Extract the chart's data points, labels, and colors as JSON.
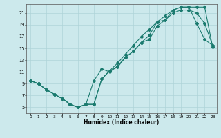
{
  "xlabel": "Humidex (Indice chaleur)",
  "background_color": "#cce9ec",
  "grid_color": "#afd4d8",
  "line_color": "#1a7a6e",
  "xlim": [
    -0.5,
    23.5
  ],
  "ylim": [
    4,
    22.5
  ],
  "xticks": [
    0,
    1,
    2,
    3,
    4,
    5,
    6,
    7,
    8,
    9,
    10,
    11,
    12,
    13,
    14,
    15,
    16,
    17,
    18,
    19,
    20,
    21,
    22,
    23
  ],
  "yticks": [
    5,
    7,
    9,
    11,
    13,
    15,
    17,
    19,
    21
  ],
  "line1_x": [
    0,
    1,
    2,
    3,
    4,
    5,
    6,
    7,
    8,
    9,
    10,
    11,
    12,
    13,
    14,
    15,
    16,
    17,
    18,
    19,
    20,
    21,
    22,
    23
  ],
  "line1_y": [
    9.5,
    9.0,
    8.0,
    7.2,
    6.5,
    5.5,
    5.0,
    5.5,
    9.5,
    11.5,
    11.0,
    12.0,
    13.5,
    14.5,
    16.0,
    17.2,
    19.5,
    19.8,
    21.5,
    22.0,
    22.0,
    19.2,
    16.5,
    15.5
  ],
  "line2_x": [
    0,
    1,
    2,
    3,
    4,
    5,
    6,
    7,
    8,
    9,
    10,
    11,
    12,
    13,
    14,
    15,
    16,
    17,
    18,
    19,
    20,
    21,
    22,
    23
  ],
  "line2_y": [
    9.5,
    9.0,
    8.0,
    7.2,
    6.5,
    5.5,
    5.0,
    5.5,
    5.5,
    9.8,
    11.2,
    12.5,
    14.0,
    15.5,
    17.0,
    18.2,
    19.5,
    20.5,
    21.5,
    22.0,
    22.0,
    22.0,
    22.0,
    15.2
  ],
  "line3_x": [
    0,
    1,
    2,
    3,
    4,
    5,
    6,
    7,
    8,
    9,
    10,
    11,
    12,
    13,
    14,
    15,
    16,
    17,
    18,
    19,
    20,
    21,
    22,
    23
  ],
  "line3_y": [
    9.5,
    9.0,
    8.0,
    7.2,
    6.5,
    5.5,
    5.0,
    5.5,
    5.5,
    9.8,
    11.2,
    11.8,
    13.5,
    14.5,
    16.0,
    16.5,
    18.8,
    19.8,
    21.0,
    21.5,
    21.5,
    21.0,
    19.2,
    15.5
  ]
}
